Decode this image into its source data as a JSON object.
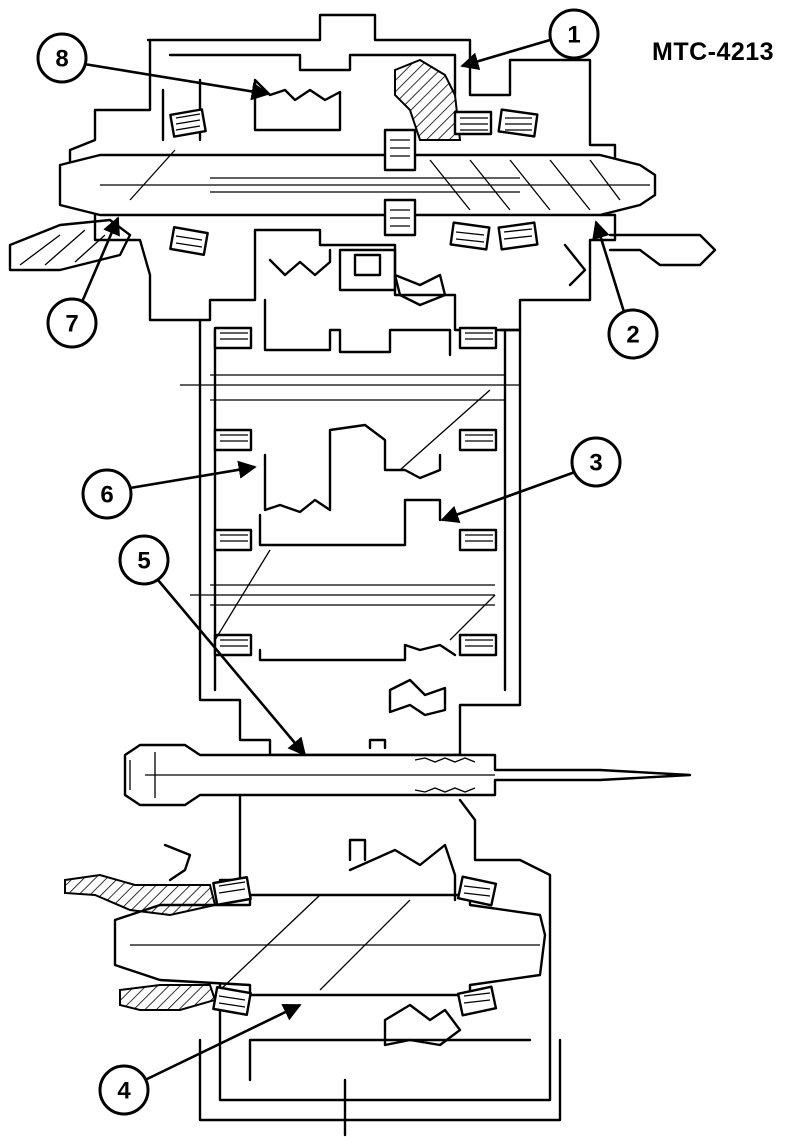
{
  "figure": {
    "reference_id": "MTC-4213"
  },
  "callouts": [
    {
      "number": "1"
    },
    {
      "number": "2"
    },
    {
      "number": "3"
    },
    {
      "number": "4"
    },
    {
      "number": "5"
    },
    {
      "number": "6"
    },
    {
      "number": "7"
    },
    {
      "number": "8"
    }
  ]
}
